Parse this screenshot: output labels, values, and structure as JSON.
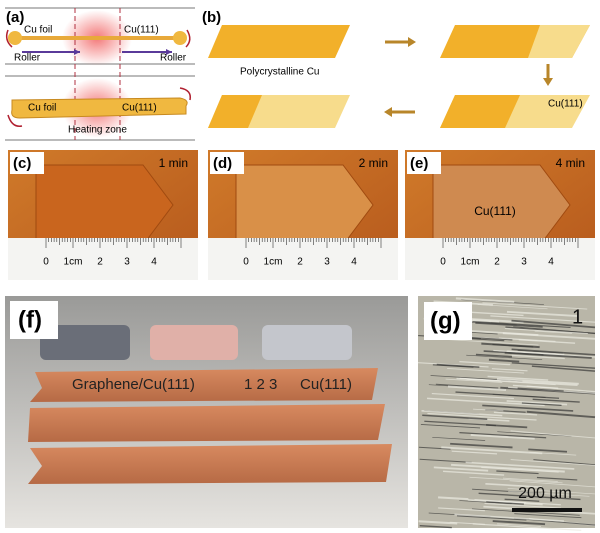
{
  "panels": {
    "a": {
      "label": "(a)",
      "top": {
        "left": "Cu foil",
        "right": "Cu(111)",
        "roller_left": "Roller",
        "roller_right": "Roller"
      },
      "bottom": {
        "left": "Cu foil",
        "right": "Cu(111)",
        "zone": "Heating zone"
      }
    },
    "b": {
      "label": "(b)",
      "start": "Polycrystalline Cu",
      "end": "Cu(111)"
    },
    "c": {
      "label": "(c)",
      "time": "1 min",
      "ruler": [
        "0",
        "1cm",
        "2",
        "3",
        "4"
      ]
    },
    "d": {
      "label": "(d)",
      "time": "2 min",
      "ruler": [
        "0",
        "1cm",
        "2",
        "3",
        "4"
      ]
    },
    "e": {
      "label": "(e)",
      "time": "4 min",
      "foil": "Cu(111)",
      "ruler": [
        "0",
        "1cm",
        "2",
        "3",
        "4"
      ]
    },
    "f": {
      "label": "(f)",
      "left": "Graphene/Cu(111)",
      "numbers": "1 2 3",
      "right": "Cu(111)"
    },
    "g": {
      "label": "(g)",
      "index": "1",
      "scale": "200 µm"
    }
  }
}
